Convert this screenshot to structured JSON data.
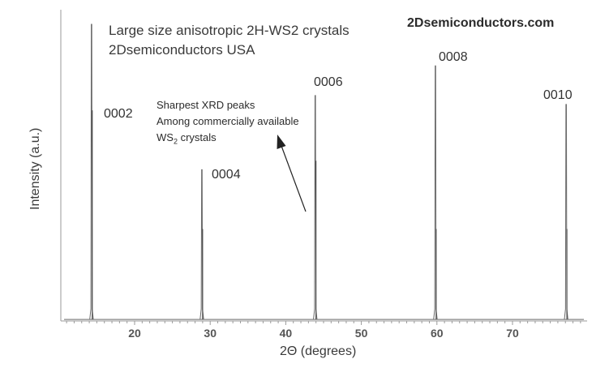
{
  "chart_data": {
    "type": "line",
    "title": "Large size anisotropic 2H-WS2 crystals",
    "subtitle": "2Dsemiconductors USA",
    "brand": "2Dsemiconductors.com",
    "xlabel": "2Θ (degrees)",
    "ylabel": "Intensity (a.u.)",
    "xlim": [
      10,
      80
    ],
    "ylim": [
      0,
      100
    ],
    "x_ticks": [
      20,
      30,
      40,
      50,
      60,
      70
    ],
    "grid": false,
    "series": [
      {
        "peaks": [
          {
            "label": "0002",
            "x": 14.3,
            "y": 100,
            "secondary_y": 71
          },
          {
            "label": "0004",
            "x": 28.9,
            "y": 51,
            "secondary_y": 31
          },
          {
            "label": "0006",
            "x": 43.9,
            "y": 76,
            "secondary_y": 54
          },
          {
            "label": "0008",
            "x": 59.8,
            "y": 86,
            "secondary_y": 31
          },
          {
            "label": "0010",
            "x": 77.1,
            "y": 73,
            "secondary_y": 31
          }
        ],
        "baseline": 0.5,
        "color": "#6a6a6a"
      }
    ],
    "annotations": {
      "line1": "Sharpest XRD peaks",
      "line2": "Among commercially available",
      "line3_main": "WS",
      "line3_sub": "2",
      "line3_rest": " crystals"
    }
  }
}
